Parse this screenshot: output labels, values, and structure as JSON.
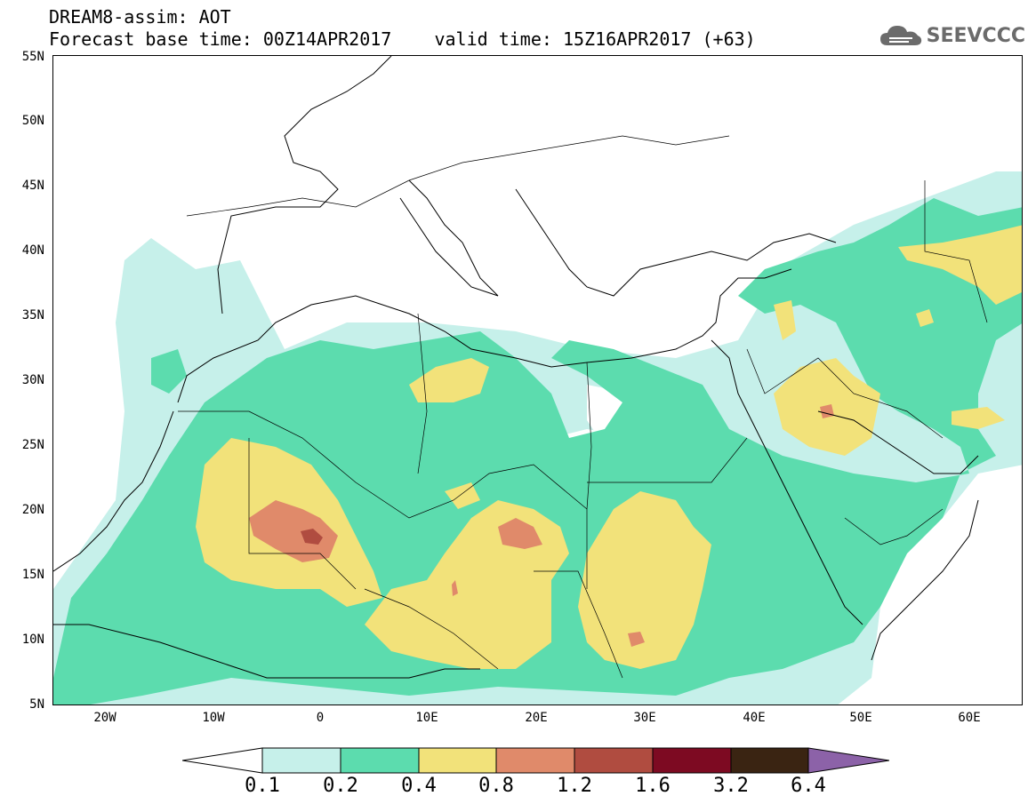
{
  "header": {
    "title_line1": "DREAM8-assim: AOT",
    "title_line2": "Forecast base time: 00Z14APR2017    valid time: 15Z16APR2017 (+63)",
    "logo_text": "SEEVCCC"
  },
  "map": {
    "lat_labels": [
      "55N",
      "50N",
      "45N",
      "40N",
      "35N",
      "30N",
      "25N",
      "20N",
      "15N",
      "10N",
      "5N"
    ],
    "lon_labels": [
      "20W",
      "10W",
      "0",
      "10E",
      "20E",
      "30E",
      "40E",
      "50E",
      "60E"
    ],
    "lon_range": [
      -25,
      65
    ],
    "lat_range": [
      5,
      55
    ]
  },
  "colorbar": {
    "labels": [
      "0.1",
      "0.2",
      "0.4",
      "0.8",
      "1.2",
      "1.6",
      "3.2",
      "6.4"
    ],
    "colors": [
      "#ffffff",
      "#c6f0ea",
      "#5cdcae",
      "#f2e27a",
      "#e08a6a",
      "#b04c40",
      "#7d0a22",
      "#3a2412",
      "#8c62a8"
    ]
  }
}
